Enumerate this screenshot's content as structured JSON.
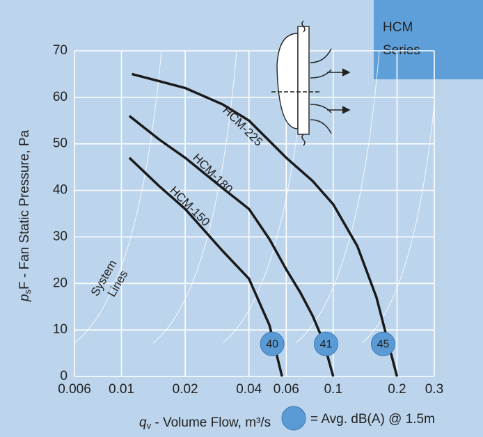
{
  "chart_data": {
    "type": "line",
    "badge": [
      "HCM",
      "Series"
    ],
    "x_label": {
      "symbol": "q",
      "subscript": "v",
      "text": " - Volume Flow, m³/s"
    },
    "y_label": {
      "symbol": "p",
      "subscript": "s",
      "text": "F - Fan Static Pressure, Pa"
    },
    "annotation": [
      "System",
      "Lines"
    ],
    "x_scale": "log",
    "xlim": [
      0.006,
      0.3
    ],
    "xticks": [
      0.006,
      0.01,
      0.02,
      0.04,
      0.06,
      0.1,
      0.2,
      0.3
    ],
    "ylim": [
      0,
      70
    ],
    "yticks": [
      0,
      10,
      20,
      30,
      40,
      50,
      60,
      70
    ],
    "grid": true,
    "series": [
      {
        "name": "HCM-225",
        "color": "#1a1a1a",
        "x": [
          0.0112,
          0.015,
          0.02,
          0.03,
          0.04,
          0.06,
          0.08,
          0.1,
          0.13,
          0.16,
          0.18,
          0.2
        ],
        "values": [
          65,
          63.5,
          62,
          58.5,
          55,
          47,
          42,
          37,
          28,
          17,
          8,
          0
        ]
      },
      {
        "name": "HCM-180",
        "color": "#1a1a1a",
        "x": [
          0.0109,
          0.015,
          0.02,
          0.03,
          0.04,
          0.05,
          0.06,
          0.07,
          0.08,
          0.09,
          0.1
        ],
        "values": [
          56,
          51,
          47,
          40.5,
          36,
          29.5,
          23,
          18,
          13,
          7.5,
          0
        ]
      },
      {
        "name": "HCM-150",
        "color": "#1a1a1a",
        "x": [
          0.0109,
          0.015,
          0.02,
          0.03,
          0.04,
          0.05,
          0.0573
        ],
        "values": [
          47,
          41,
          36,
          27,
          21,
          11,
          0
        ]
      }
    ],
    "markers": {
      "color": "#5b9bd5",
      "x": [
        0.0515,
        0.0925,
        0.172
      ],
      "values": [
        7,
        7,
        7
      ],
      "db": [
        40,
        41,
        45
      ]
    },
    "legend_label": "= Avg. dB(A) @ 1.5m"
  }
}
